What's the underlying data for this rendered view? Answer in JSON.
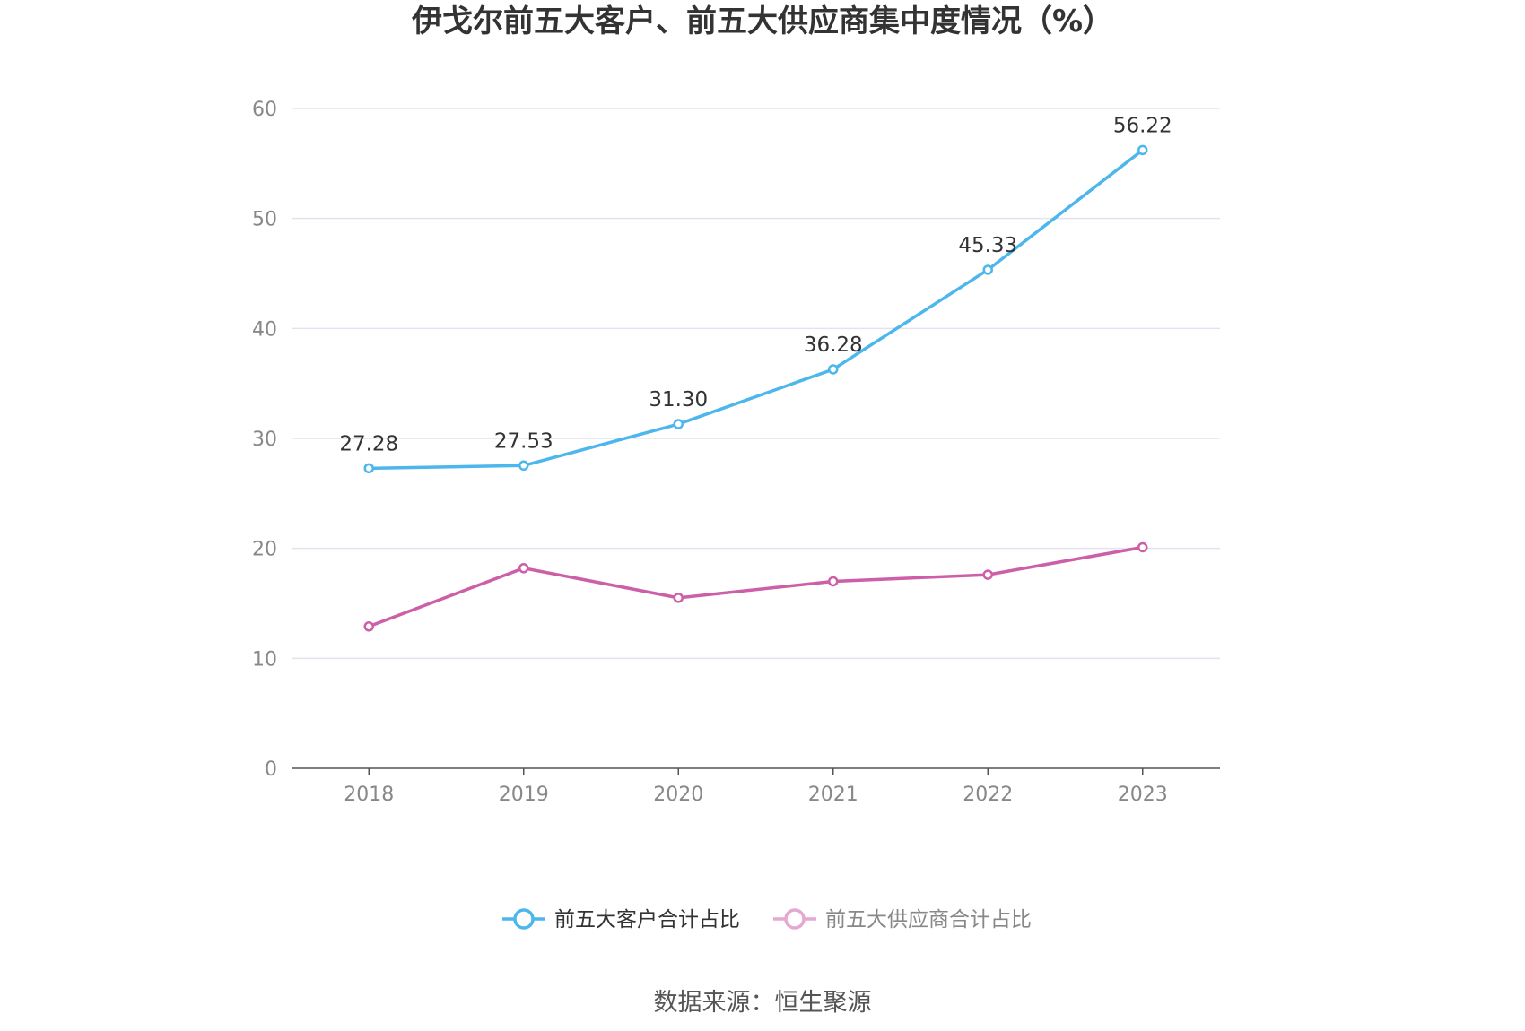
{
  "chart_data": {
    "type": "line",
    "title": "伊戈尔前五大客户、前五大供应商集中度情况（%）",
    "categories": [
      "2018",
      "2019",
      "2020",
      "2021",
      "2022",
      "2023"
    ],
    "series": [
      {
        "name": "前五大客户合计占比",
        "color": "#4db6ec",
        "values": [
          27.28,
          27.53,
          31.3,
          36.28,
          45.33,
          56.22
        ],
        "labels": [
          "27.28",
          "27.53",
          "31.30",
          "36.28",
          "45.33",
          "56.22"
        ]
      },
      {
        "name": "前五大供应商合计占比",
        "color": "#cc5fa8",
        "legend_color": "#e6a7d0",
        "values": [
          12.9,
          18.2,
          15.5,
          17.0,
          17.6,
          20.1
        ]
      }
    ],
    "yticks": [
      "0",
      "10",
      "20",
      "30",
      "40",
      "50",
      "60"
    ],
    "ylim": [
      0,
      60
    ],
    "grid": true,
    "legend": "bottom"
  },
  "source": "数据来源：恒生聚源"
}
